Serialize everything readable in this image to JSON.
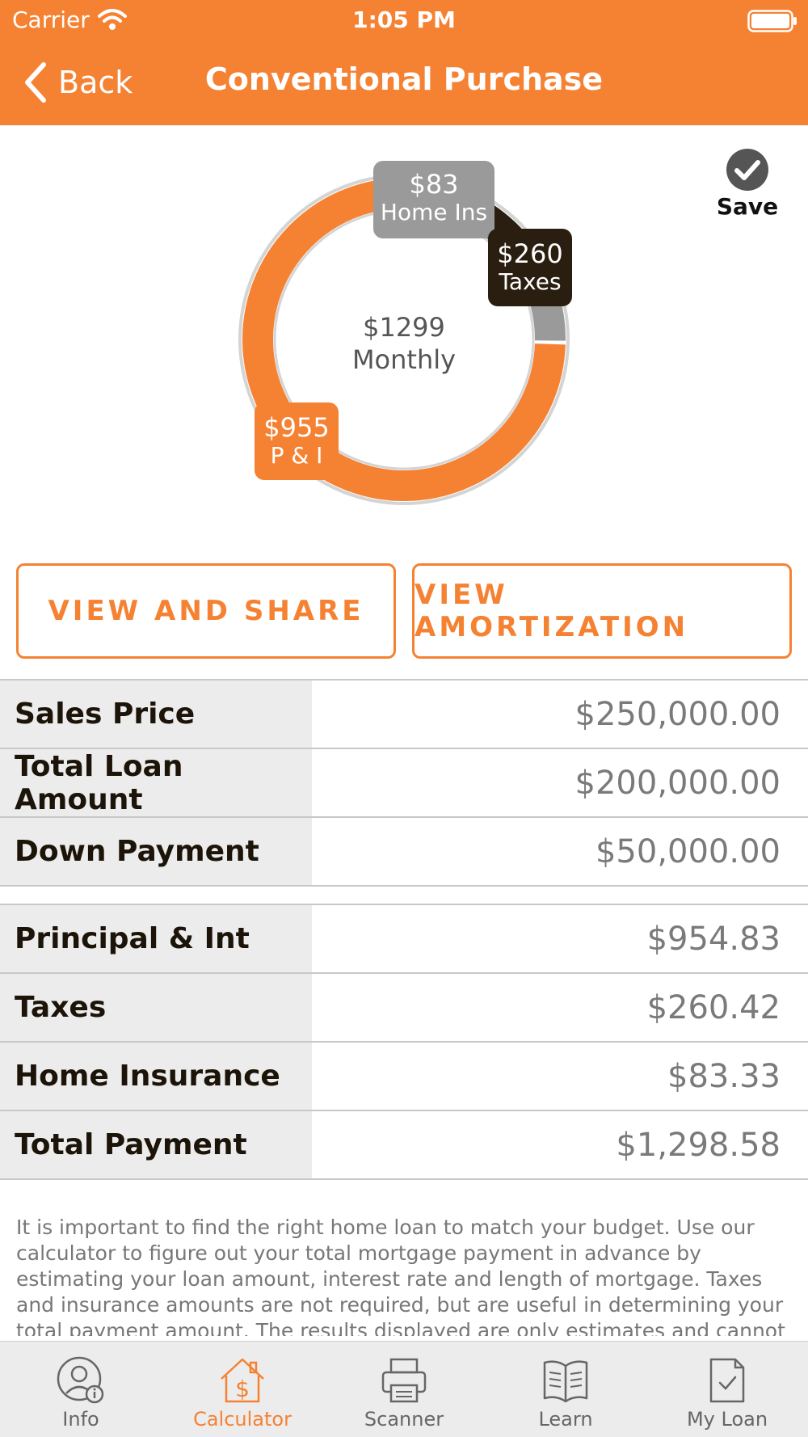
{
  "status_bar": {
    "carrier": "Carrier",
    "time": "1:05 PM"
  },
  "header": {
    "back_label": "Back",
    "title": "Conventional Purchase"
  },
  "chart_data": {
    "type": "pie",
    "center_value": "$1299",
    "center_label": "Monthly",
    "slices": [
      {
        "name": "P & I",
        "label": "$955",
        "value": 954.83,
        "color": "#f58233"
      },
      {
        "name": "Taxes",
        "label": "$260",
        "value": 260.42,
        "color": "#2a1e10"
      },
      {
        "name": "Home Ins",
        "label": "$83",
        "value": 83.33,
        "color": "#9a9a9a"
      }
    ]
  },
  "save": {
    "label": "Save"
  },
  "buttons": {
    "view_share": "VIEW AND SHARE",
    "view_amortization": "VIEW AMORTIZATION"
  },
  "loan_table": [
    {
      "label": "Sales Price",
      "value": "$250,000.00"
    },
    {
      "label": "Total Loan Amount",
      "value": "$200,000.00"
    },
    {
      "label": "Down Payment",
      "value": "$50,000.00"
    }
  ],
  "payment_table": [
    {
      "label": "Principal & Int",
      "value": "$954.83"
    },
    {
      "label": "Taxes",
      "value": "$260.42"
    },
    {
      "label": "Home Insurance",
      "value": "$83.33"
    },
    {
      "label": "Total Payment",
      "value": "$1,298.58"
    }
  ],
  "disclaimer": "It is important to find the right home loan to match your budget. Use our calculator to figure out your total mortgage payment in advance by estimating your loan amount, interest rate and length of mortgage. Taxes and insurance amounts are not required, but are useful in determining your total payment amount.  The results displayed are only estimates and cannot",
  "tabs": [
    {
      "label": "Info",
      "icon": "user-info-icon"
    },
    {
      "label": "Calculator",
      "icon": "house-dollar-icon",
      "active": true
    },
    {
      "label": "Scanner",
      "icon": "printer-icon"
    },
    {
      "label": "Learn",
      "icon": "book-icon"
    },
    {
      "label": "My Loan",
      "icon": "document-check-icon"
    }
  ],
  "colors": {
    "accent": "#f58233",
    "dark": "#2a1e10",
    "gray": "#9a9a9a"
  }
}
